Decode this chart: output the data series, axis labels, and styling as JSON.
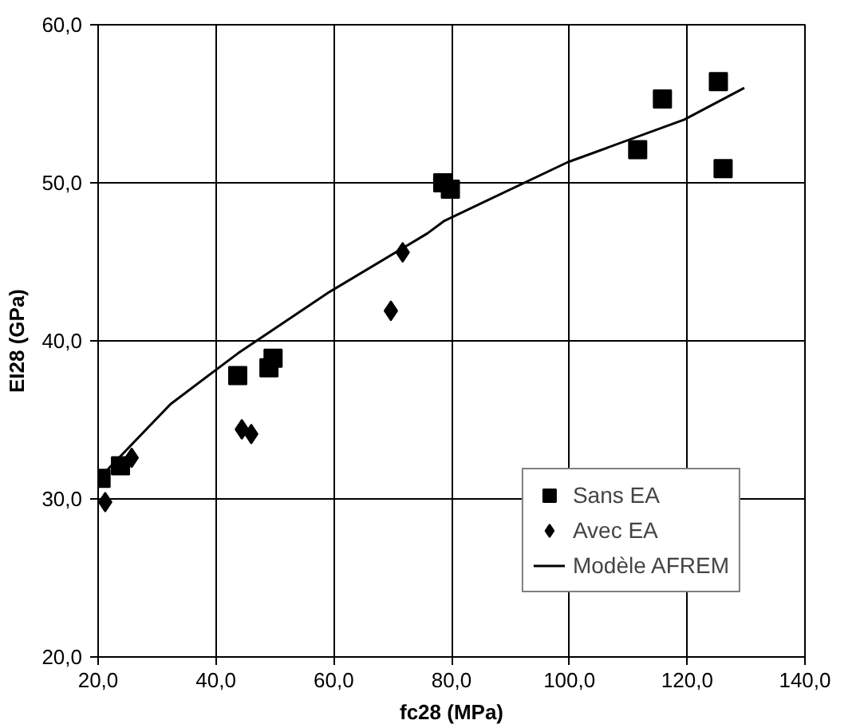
{
  "chart_data": {
    "type": "scatter",
    "xlabel": "fc28 (MPa)",
    "ylabel": "EI28 (GPa)",
    "xlim": [
      20,
      140
    ],
    "ylim": [
      20,
      60
    ],
    "xticks": [
      {
        "value": 20,
        "label": "20,0"
      },
      {
        "value": 40,
        "label": "40,0"
      },
      {
        "value": 60,
        "label": "60,0"
      },
      {
        "value": 80,
        "label": "80,0"
      },
      {
        "value": 100,
        "label": "100,0"
      },
      {
        "value": 120,
        "label": "120,0"
      },
      {
        "value": 140,
        "label": "140,0"
      }
    ],
    "yticks": [
      {
        "value": 20,
        "label": "20,0"
      },
      {
        "value": 30,
        "label": "30,0"
      },
      {
        "value": 40,
        "label": "40,0"
      },
      {
        "value": 50,
        "label": "50,0"
      },
      {
        "value": 60,
        "label": "60,0"
      }
    ],
    "grid": true,
    "legend": "bottom right",
    "series": [
      {
        "name": "Sans EA",
        "marker": "square",
        "color": "#000000",
        "x": [
          20.5,
          23.8,
          43.7,
          49.0,
          49.7,
          78.5,
          79.8,
          111.6,
          115.8,
          125.3,
          126.1
        ],
        "values": [
          31.3,
          32.1,
          37.8,
          38.3,
          38.9,
          50.0,
          49.6,
          52.1,
          55.3,
          56.4,
          50.9
        ]
      },
      {
        "name": "Avec EA",
        "marker": "diamond",
        "color": "#000000",
        "x": [
          21.2,
          25.7,
          44.4,
          46.0,
          69.7,
          71.7
        ],
        "values": [
          29.8,
          32.6,
          34.4,
          34.1,
          41.9,
          45.6
        ]
      },
      {
        "name": "Modèle AFREM",
        "type": "line",
        "marker": "none",
        "line_style": "solid",
        "color": "#000000",
        "x": [
          20.7,
          32.3,
          43.7,
          59.3,
          75.9,
          78.8,
          99.7,
          119.5,
          129.7
        ],
        "values": [
          31.5,
          36.0,
          39.2,
          43.1,
          46.8,
          47.6,
          51.3,
          54.0,
          56.0
        ]
      }
    ]
  }
}
